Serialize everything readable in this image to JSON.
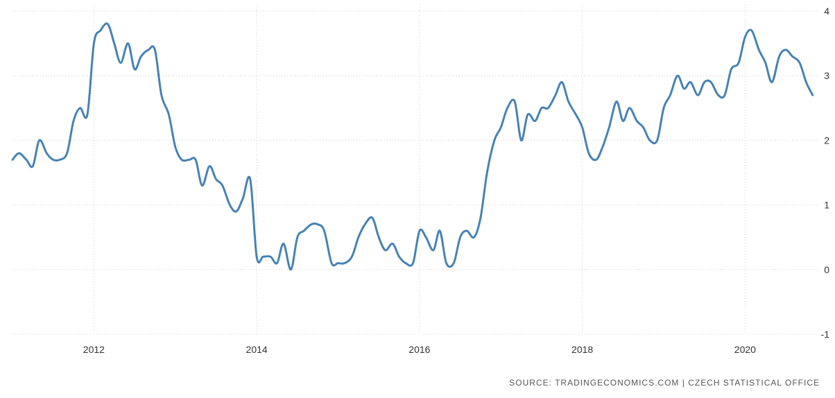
{
  "source_text": "SOURCE: TRADINGECONOMICS.COM | CZECH STATISTICAL OFFICE",
  "colors": {
    "line": "#4682b4",
    "grid": "#cccccc",
    "text": "#333333"
  },
  "chart_data": {
    "type": "line",
    "title": "",
    "xlabel": "",
    "ylabel": "",
    "xlim": [
      2011.0,
      2020.9
    ],
    "ylim": [
      -1,
      4
    ],
    "x_ticks": [
      2012,
      2014,
      2016,
      2018,
      2020
    ],
    "x_tick_labels": [
      "2012",
      "2014",
      "2016",
      "2018",
      "2020"
    ],
    "y_ticks": [
      4,
      3,
      2,
      1,
      0,
      -1
    ],
    "y_tick_labels": [
      "4",
      "3",
      "2",
      "1",
      "0",
      "-1"
    ],
    "y_axis_side": "right",
    "grid": true,
    "series": [
      {
        "x": [
          2011.0,
          2011.08,
          2011.17,
          2011.25,
          2011.33,
          2011.42,
          2011.5,
          2011.58,
          2011.67,
          2011.75,
          2011.83,
          2011.92,
          2012.0,
          2012.08,
          2012.17,
          2012.25,
          2012.33,
          2012.42,
          2012.5,
          2012.58,
          2012.67,
          2012.75,
          2012.83,
          2012.92,
          2013.0,
          2013.08,
          2013.17,
          2013.25,
          2013.33,
          2013.42,
          2013.5,
          2013.58,
          2013.67,
          2013.75,
          2013.83,
          2013.92,
          2014.0,
          2014.08,
          2014.17,
          2014.25,
          2014.33,
          2014.42,
          2014.5,
          2014.58,
          2014.67,
          2014.75,
          2014.83,
          2014.92,
          2015.0,
          2015.08,
          2015.17,
          2015.25,
          2015.33,
          2015.42,
          2015.5,
          2015.58,
          2015.67,
          2015.75,
          2015.83,
          2015.92,
          2016.0,
          2016.08,
          2016.17,
          2016.25,
          2016.33,
          2016.42,
          2016.5,
          2016.58,
          2016.67,
          2016.75,
          2016.83,
          2016.92,
          2017.0,
          2017.08,
          2017.17,
          2017.25,
          2017.33,
          2017.42,
          2017.5,
          2017.58,
          2017.67,
          2017.75,
          2017.83,
          2017.92,
          2018.0,
          2018.08,
          2018.17,
          2018.25,
          2018.33,
          2018.42,
          2018.5,
          2018.58,
          2018.67,
          2018.75,
          2018.83,
          2018.92,
          2019.0,
          2019.08,
          2019.17,
          2019.25,
          2019.33,
          2019.42,
          2019.5,
          2019.58,
          2019.67,
          2019.75,
          2019.83,
          2019.92,
          2020.0,
          2020.08,
          2020.17,
          2020.25,
          2020.33,
          2020.42,
          2020.5,
          2020.58,
          2020.67,
          2020.75,
          2020.83
        ],
        "values": [
          1.7,
          1.8,
          1.7,
          1.6,
          2.0,
          1.8,
          1.7,
          1.7,
          1.8,
          2.3,
          2.5,
          2.4,
          3.5,
          3.7,
          3.8,
          3.5,
          3.2,
          3.5,
          3.1,
          3.3,
          3.4,
          3.4,
          2.7,
          2.4,
          1.9,
          1.7,
          1.7,
          1.7,
          1.3,
          1.6,
          1.4,
          1.3,
          1.0,
          0.9,
          1.1,
          1.4,
          0.2,
          0.2,
          0.2,
          0.1,
          0.4,
          0.0,
          0.5,
          0.6,
          0.7,
          0.7,
          0.6,
          0.1,
          0.1,
          0.1,
          0.2,
          0.5,
          0.7,
          0.8,
          0.5,
          0.3,
          0.4,
          0.2,
          0.1,
          0.1,
          0.6,
          0.5,
          0.3,
          0.6,
          0.1,
          0.1,
          0.5,
          0.6,
          0.5,
          0.8,
          1.5,
          2.0,
          2.2,
          2.5,
          2.6,
          2.0,
          2.4,
          2.3,
          2.5,
          2.5,
          2.7,
          2.9,
          2.6,
          2.4,
          2.2,
          1.8,
          1.7,
          1.9,
          2.2,
          2.6,
          2.3,
          2.5,
          2.3,
          2.2,
          2.0,
          2.0,
          2.5,
          2.7,
          3.0,
          2.8,
          2.9,
          2.7,
          2.9,
          2.9,
          2.7,
          2.7,
          3.1,
          3.2,
          3.6,
          3.7,
          3.4,
          3.2,
          2.9,
          3.3,
          3.4,
          3.3,
          3.2,
          2.9,
          2.7
        ]
      }
    ]
  }
}
